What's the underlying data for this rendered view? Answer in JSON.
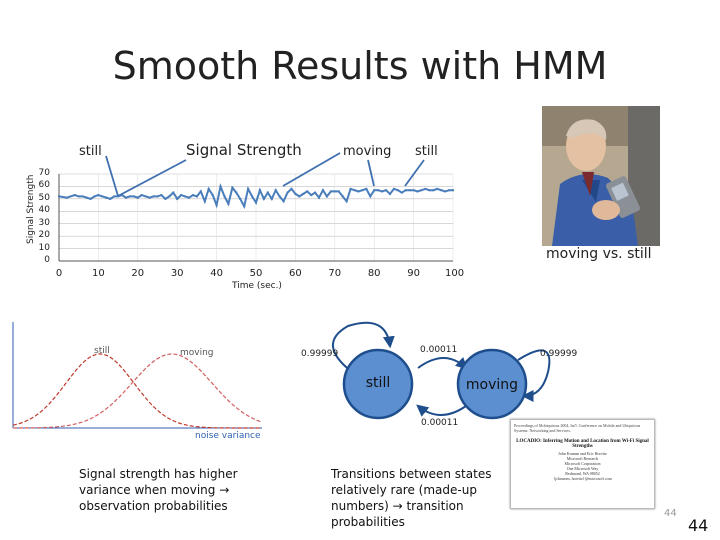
{
  "slide": {
    "title": "Smooth Results with HMM",
    "page_number_small": "44",
    "page_number": "44"
  },
  "signal_chart": {
    "label_still_left": "still",
    "label_title": "Signal Strength",
    "label_moving": "moving",
    "label_still_right": "still",
    "y_axis_label": "Signal Strength",
    "x_axis_label": "Time (sec.)",
    "y_ticks": [
      "70",
      "60",
      "50",
      "40",
      "30",
      "20",
      "10",
      "0"
    ],
    "x_ticks": [
      "0",
      "10",
      "20",
      "30",
      "40",
      "50",
      "60",
      "70",
      "80",
      "90",
      "100"
    ]
  },
  "chart_data": {
    "type": "line",
    "xlabel": "Time (sec.)",
    "ylabel": "Signal Strength",
    "xlim": [
      0,
      100
    ],
    "ylim": [
      0,
      70
    ],
    "grid": true,
    "series": [
      {
        "color": "#4a7ebb",
        "x": [
          0,
          2,
          4,
          5,
          6,
          7,
          8,
          9,
          10,
          11,
          12,
          13,
          14,
          15,
          16,
          17,
          18,
          19,
          20,
          21,
          22,
          23,
          24,
          25,
          26,
          27,
          28,
          29,
          30,
          31,
          32,
          33,
          34,
          35,
          36,
          37,
          38,
          39,
          40,
          41,
          42,
          43,
          44,
          45,
          46,
          47,
          48,
          49,
          50,
          51,
          52,
          53,
          54,
          55,
          56,
          57,
          58,
          59,
          60,
          61,
          62,
          63,
          64,
          65,
          66,
          67,
          68,
          69,
          70,
          71,
          72,
          73,
          74,
          75,
          76,
          77,
          78,
          79,
          80,
          81,
          82,
          83,
          84,
          85,
          86,
          87,
          88,
          89,
          90,
          91,
          92,
          93,
          94,
          95,
          96,
          97,
          98,
          99,
          100
        ],
        "y": [
          52,
          51,
          53,
          52,
          52,
          51,
          50,
          52,
          53,
          52,
          51,
          50,
          52,
          52,
          53,
          51,
          52,
          52,
          51,
          53,
          52,
          51,
          52,
          52,
          53,
          50,
          52,
          55,
          50,
          53,
          52,
          51,
          53,
          52,
          56,
          48,
          58,
          53,
          45,
          60,
          52,
          46,
          59,
          55,
          50,
          44,
          58,
          52,
          47,
          57,
          50,
          55,
          50,
          57,
          52,
          48,
          55,
          58,
          54,
          52,
          54,
          56,
          53,
          55,
          51,
          57,
          52,
          56,
          56,
          56,
          52,
          48,
          58,
          57,
          56,
          57,
          58,
          52,
          57,
          57,
          56,
          57,
          54,
          58,
          57,
          55,
          57,
          57,
          57,
          56,
          57,
          58,
          57,
          57,
          58,
          57,
          56,
          57,
          57
        ]
      }
    ]
  },
  "gaussians": {
    "label_still": "still",
    "label_moving": "moving",
    "x_label": "noise variance"
  },
  "hmm": {
    "state_still": "still",
    "state_moving": "moving",
    "p_self_still": "0.99999",
    "p_still_to_moving": "0.00011",
    "p_moving_to_still": "0.00011",
    "p_self_moving": "0.99999"
  },
  "photo_caption": "moving vs. still",
  "notes": {
    "left_line1": "Signal strength has higher",
    "left_line2": "variance when moving →",
    "left_line3": "observation probabilities",
    "right_line1": "Transitions between states",
    "right_line2": "relatively rare (made-up",
    "right_line3": "numbers) → transition",
    "right_line4": "probabilities"
  },
  "paper": {
    "header": "Proceedings of Mobiquitous 2004, Int'l. Conference on Mobile and Ubiquitous Systems: Networking and Services.",
    "title": "LOCADIO: Inferring Motion and Location from Wi-Fi Signal Strengths",
    "authors": "John Krumm and Eric Horvitz\nMicrosoft Research\nMicrosoft Corporation\nOne Microsoft Way\nRedmond, WA 98052\n{jckrumm, horvitz}@microsoft.com"
  },
  "colors": {
    "signal_line": "#4a7ebb",
    "pointer_line": "#3f6fb0",
    "state_fill": "#5b8fd0",
    "state_border": "#1f4e8c",
    "gauss_still": "#c0392b",
    "gauss_moving": "#d35f5f",
    "axis_blue": "#2f5fb0"
  }
}
